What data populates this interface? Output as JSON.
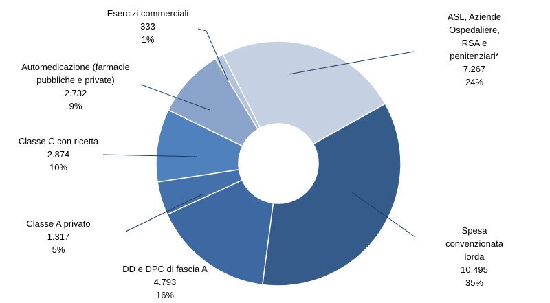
{
  "chart_data": {
    "type": "donut",
    "categories": [
      "ASL, Aziende Ospedaliere,\nRSA e penitenziari*",
      "Spesa convenzionata lorda",
      "DD e DPC di fascia A",
      "Classe A privato",
      "Classe C con ricetta",
      "Automedicazione (farmacie\npubbliche e private)",
      "Esercizi commerciali"
    ],
    "values": [
      7267,
      10495,
      4793,
      1317,
      2874,
      2732,
      333
    ],
    "value_labels": [
      "7.267",
      "10.495",
      "4.793",
      "1.317",
      "2.874",
      "2.732",
      "333"
    ],
    "percentages": [
      24,
      35,
      16,
      5,
      10,
      9,
      1
    ],
    "percentage_labels": [
      "24%",
      "35%",
      "16%",
      "5%",
      "10%",
      "9%",
      "1%"
    ],
    "colors": [
      "#c5d0e3",
      "#345b8a",
      "#3d68a1",
      "#4470ab",
      "#4f81bd",
      "#8aa3cb",
      "#b4c3de"
    ]
  }
}
